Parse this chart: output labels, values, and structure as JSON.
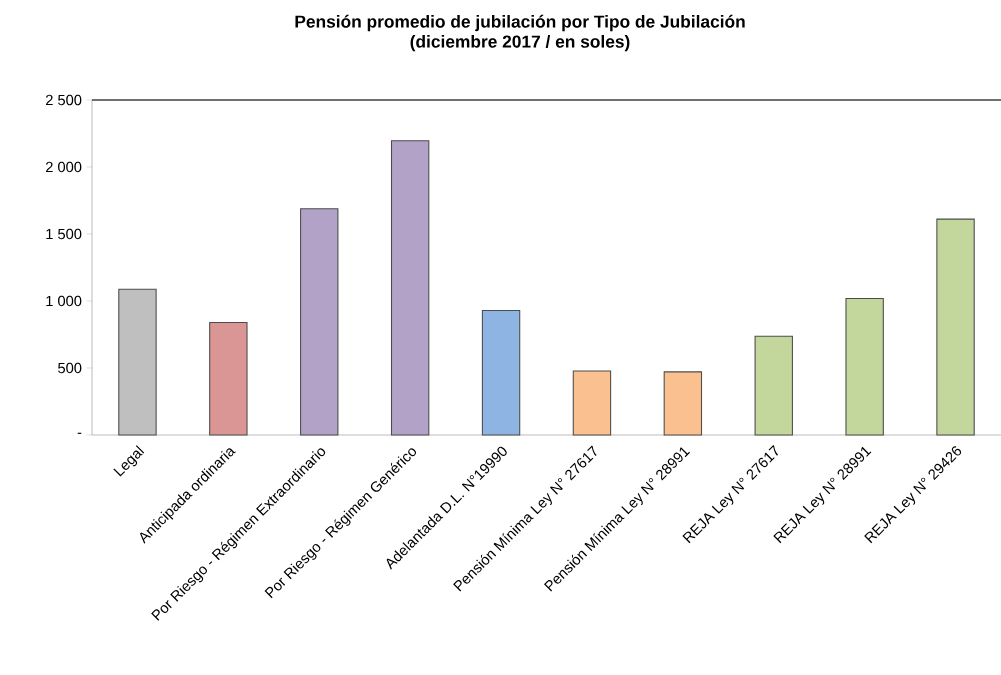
{
  "chart_data": {
    "type": "bar",
    "title": "Pensión promedio de jubilación  por Tipo  de Jubilación",
    "subtitle": "(diciembre 2017 / en soles)",
    "categories": [
      "Legal",
      "Anticipada ordinaria",
      "Por Riesgo - Régimen Extraordinario",
      "Por Riesgo - Régimen Genérico",
      "Adelantada D.L. N°19990",
      "Pensión Mínima Ley N° 27617",
      "Pensión Mínima Ley N° 28991",
      "REJA Ley N° 27617",
      "REJA Ley N° 28991",
      "REJA Ley N° 29426"
    ],
    "values": [
      1088,
      839,
      1688,
      2196,
      929,
      478,
      471,
      737,
      1018,
      1611
    ],
    "colors": [
      "#bfbfbf",
      "#d99694",
      "#b3a2c7",
      "#b3a2c7",
      "#8eb4e3",
      "#fac090",
      "#fac090",
      "#c3d69b",
      "#c3d69b",
      "#c3d69b"
    ],
    "ylim": [
      0,
      2500
    ],
    "yticks": [
      {
        "value": 0,
        "label": "-"
      },
      {
        "value": 500,
        "label": "500"
      },
      {
        "value": 1000,
        "label": "1 000"
      },
      {
        "value": 1500,
        "label": "1 500"
      },
      {
        "value": 2000,
        "label": "2 000"
      },
      {
        "value": 2500,
        "label": "2 500"
      }
    ],
    "grid": false
  }
}
